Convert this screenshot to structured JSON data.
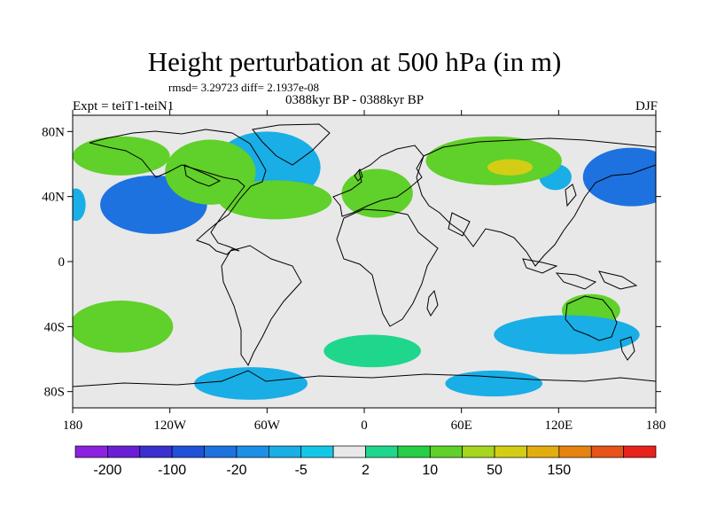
{
  "chart_data": {
    "type": "filled-contour-map",
    "title": "Height perturbation at 500 hPa (in m)",
    "stats": "rmsd= 3.29723 diff= 2.1937e-08",
    "left_label": "Expt = teiT1-teiN1",
    "center_label": "0388kyr BP - 0388kyr BP",
    "right_label": "DJF",
    "projection": "cylindrical equidistant",
    "lon_range": [
      -180,
      180
    ],
    "lat_range": [
      -90,
      90
    ],
    "x_ticks": [
      {
        "value": -180,
        "label": "180"
      },
      {
        "value": -120,
        "label": "120W"
      },
      {
        "value": -60,
        "label": "60W"
      },
      {
        "value": 0,
        "label": "0"
      },
      {
        "value": 60,
        "label": "60E"
      },
      {
        "value": 120,
        "label": "120E"
      },
      {
        "value": 180,
        "label": "180"
      }
    ],
    "y_ticks": [
      {
        "value": 80,
        "label": "80N"
      },
      {
        "value": 40,
        "label": "40N"
      },
      {
        "value": 0,
        "label": "0"
      },
      {
        "value": -40,
        "label": "40S"
      },
      {
        "value": -80,
        "label": "80S"
      }
    ],
    "colorbar": {
      "colors": [
        "#8c22e0",
        "#6a1fd6",
        "#3a2fd0",
        "#1f52d8",
        "#1d72df",
        "#1d8fe6",
        "#19aee6",
        "#15c7e6",
        "#e8e8e8",
        "#1ed68c",
        "#26cf46",
        "#60d02a",
        "#a6d61e",
        "#d4cd15",
        "#e2ad0f",
        "#e6840f",
        "#e8531a",
        "#e8231c"
      ],
      "labels": [
        "-200",
        "-100",
        "-20",
        "-5",
        "2",
        "10",
        "50",
        "150"
      ],
      "label_boundary_index": [
        1,
        3,
        5,
        7,
        9,
        11,
        13,
        15
      ]
    },
    "regions": [
      {
        "name": "n-pacific-low",
        "lon": -130,
        "lat": 35,
        "rx": 33,
        "ry": 18,
        "level": "-20"
      },
      {
        "name": "w-pacific-low",
        "lon": 165,
        "lat": 52,
        "rx": 30,
        "ry": 18,
        "level": "-20"
      },
      {
        "name": "dateline-low-west",
        "lon": -178,
        "lat": 35,
        "rx": 6,
        "ry": 10,
        "level": "-5"
      },
      {
        "name": "siberia-low",
        "lon": 118,
        "lat": 52,
        "rx": 10,
        "ry": 8,
        "level": "-5"
      },
      {
        "name": "n-atlantic-low",
        "lon": -60,
        "lat": 58,
        "rx": 33,
        "ry": 22,
        "level": "-5"
      },
      {
        "name": "canada-high",
        "lon": -95,
        "lat": 55,
        "rx": 28,
        "ry": 20,
        "level": "10"
      },
      {
        "name": "alaska-high",
        "lon": -150,
        "lat": 65,
        "rx": 30,
        "ry": 12,
        "level": "10"
      },
      {
        "name": "us-high",
        "lon": -55,
        "lat": 38,
        "rx": 35,
        "ry": 12,
        "level": "10"
      },
      {
        "name": "europe-high",
        "lon": 8,
        "lat": 42,
        "rx": 22,
        "ry": 15,
        "level": "10"
      },
      {
        "name": "asia-high",
        "lon": 80,
        "lat": 62,
        "rx": 42,
        "ry": 15,
        "level": "10"
      },
      {
        "name": "asia-high-core",
        "lon": 90,
        "lat": 58,
        "rx": 14,
        "ry": 5,
        "level": "50"
      },
      {
        "name": "e-pacific-high",
        "lon": -150,
        "lat": -40,
        "rx": 32,
        "ry": 16,
        "level": "10"
      },
      {
        "name": "s-atlantic-high",
        "lon": 5,
        "lat": -55,
        "rx": 30,
        "ry": 10,
        "level": "2"
      },
      {
        "name": "australia-high",
        "lon": 140,
        "lat": -30,
        "rx": 18,
        "ry": 10,
        "level": "10"
      },
      {
        "name": "s-indian-low",
        "lon": 125,
        "lat": -45,
        "rx": 45,
        "ry": 12,
        "level": "-5"
      },
      {
        "name": "antarctic-pacific-low",
        "lon": -70,
        "lat": -75,
        "rx": 35,
        "ry": 10,
        "level": "-5"
      },
      {
        "name": "antarctic-indian-low",
        "lon": 80,
        "lat": -75,
        "rx": 30,
        "ry": 8,
        "level": "-5"
      }
    ]
  }
}
